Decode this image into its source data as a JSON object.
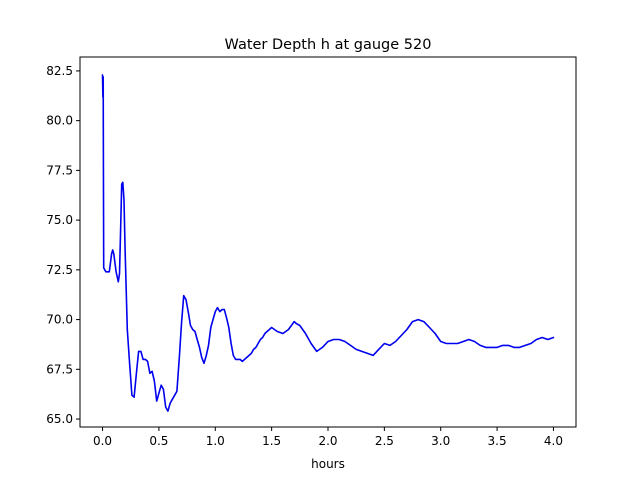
{
  "chart_data": {
    "type": "line",
    "title": "Water Depth h at gauge 520",
    "xlabel": "hours",
    "ylabel": "",
    "xlim": [
      -0.2,
      4.2
    ],
    "ylim": [
      64.6,
      83.2
    ],
    "xticks": [
      0.0,
      0.5,
      1.0,
      1.5,
      2.0,
      2.5,
      3.0,
      3.5,
      4.0
    ],
    "xtick_labels": [
      "0.0",
      "0.5",
      "1.0",
      "1.5",
      "2.0",
      "2.5",
      "3.0",
      "3.5",
      "4.0"
    ],
    "yticks": [
      65.0,
      67.5,
      70.0,
      72.5,
      75.0,
      77.5,
      80.0,
      82.5
    ],
    "ytick_labels": [
      "65.0",
      "67.5",
      "70.0",
      "72.5",
      "75.0",
      "77.5",
      "80.0",
      "82.5"
    ],
    "grid": false,
    "legend": "none",
    "series": [
      {
        "color": "#0000ee",
        "x": [
          0.0,
          0.003,
          0.006,
          0.008,
          0.01,
          0.03,
          0.06,
          0.08,
          0.09,
          0.1,
          0.12,
          0.14,
          0.15,
          0.16,
          0.17,
          0.18,
          0.19,
          0.2,
          0.22,
          0.24,
          0.26,
          0.28,
          0.3,
          0.32,
          0.34,
          0.36,
          0.38,
          0.4,
          0.42,
          0.44,
          0.46,
          0.48,
          0.5,
          0.52,
          0.54,
          0.56,
          0.58,
          0.6,
          0.62,
          0.64,
          0.66,
          0.68,
          0.7,
          0.72,
          0.74,
          0.76,
          0.78,
          0.8,
          0.82,
          0.84,
          0.86,
          0.88,
          0.9,
          0.92,
          0.94,
          0.96,
          0.98,
          1.0,
          1.02,
          1.04,
          1.06,
          1.08,
          1.1,
          1.12,
          1.14,
          1.16,
          1.18,
          1.2,
          1.22,
          1.24,
          1.26,
          1.28,
          1.3,
          1.32,
          1.34,
          1.36,
          1.38,
          1.4,
          1.42,
          1.44,
          1.46,
          1.48,
          1.5,
          1.55,
          1.6,
          1.65,
          1.7,
          1.72,
          1.75,
          1.8,
          1.85,
          1.9,
          1.95,
          2.0,
          2.05,
          2.1,
          2.15,
          2.2,
          2.25,
          2.3,
          2.35,
          2.4,
          2.45,
          2.5,
          2.55,
          2.6,
          2.65,
          2.7,
          2.75,
          2.8,
          2.85,
          2.9,
          2.95,
          3.0,
          3.05,
          3.1,
          3.15,
          3.2,
          3.25,
          3.3,
          3.35,
          3.4,
          3.45,
          3.5,
          3.55,
          3.6,
          3.65,
          3.7,
          3.75,
          3.8,
          3.85,
          3.9,
          3.95,
          4.0
        ],
        "y": [
          82.3,
          81.2,
          82.2,
          78.0,
          72.6,
          72.4,
          72.4,
          73.3,
          73.5,
          73.3,
          72.4,
          71.9,
          72.3,
          74.5,
          76.8,
          76.9,
          76.0,
          73.5,
          69.5,
          67.8,
          66.2,
          66.1,
          67.3,
          68.4,
          68.4,
          68.0,
          68.0,
          67.9,
          67.3,
          67.4,
          66.9,
          65.9,
          66.3,
          66.7,
          66.5,
          65.6,
          65.4,
          65.8,
          66.0,
          66.2,
          66.4,
          68.0,
          69.8,
          71.2,
          71.0,
          70.4,
          69.7,
          69.5,
          69.4,
          69.0,
          68.6,
          68.1,
          67.8,
          68.2,
          68.7,
          69.6,
          70.0,
          70.4,
          70.6,
          70.4,
          70.5,
          70.5,
          70.1,
          69.6,
          68.8,
          68.2,
          68.0,
          68.0,
          68.0,
          67.9,
          68.0,
          68.1,
          68.2,
          68.3,
          68.5,
          68.6,
          68.8,
          69.0,
          69.1,
          69.3,
          69.4,
          69.5,
          69.6,
          69.4,
          69.3,
          69.5,
          69.9,
          69.8,
          69.7,
          69.3,
          68.8,
          68.4,
          68.6,
          68.9,
          69.0,
          69.0,
          68.9,
          68.7,
          68.5,
          68.4,
          68.3,
          68.2,
          68.5,
          68.8,
          68.7,
          68.9,
          69.2,
          69.5,
          69.9,
          70.0,
          69.9,
          69.6,
          69.3,
          68.9,
          68.8,
          68.8,
          68.8,
          68.9,
          69.0,
          68.9,
          68.7,
          68.6,
          68.6,
          68.6,
          68.7,
          68.7,
          68.6,
          68.6,
          68.7,
          68.8,
          69.0,
          69.1,
          69.0,
          69.1
        ]
      }
    ]
  }
}
